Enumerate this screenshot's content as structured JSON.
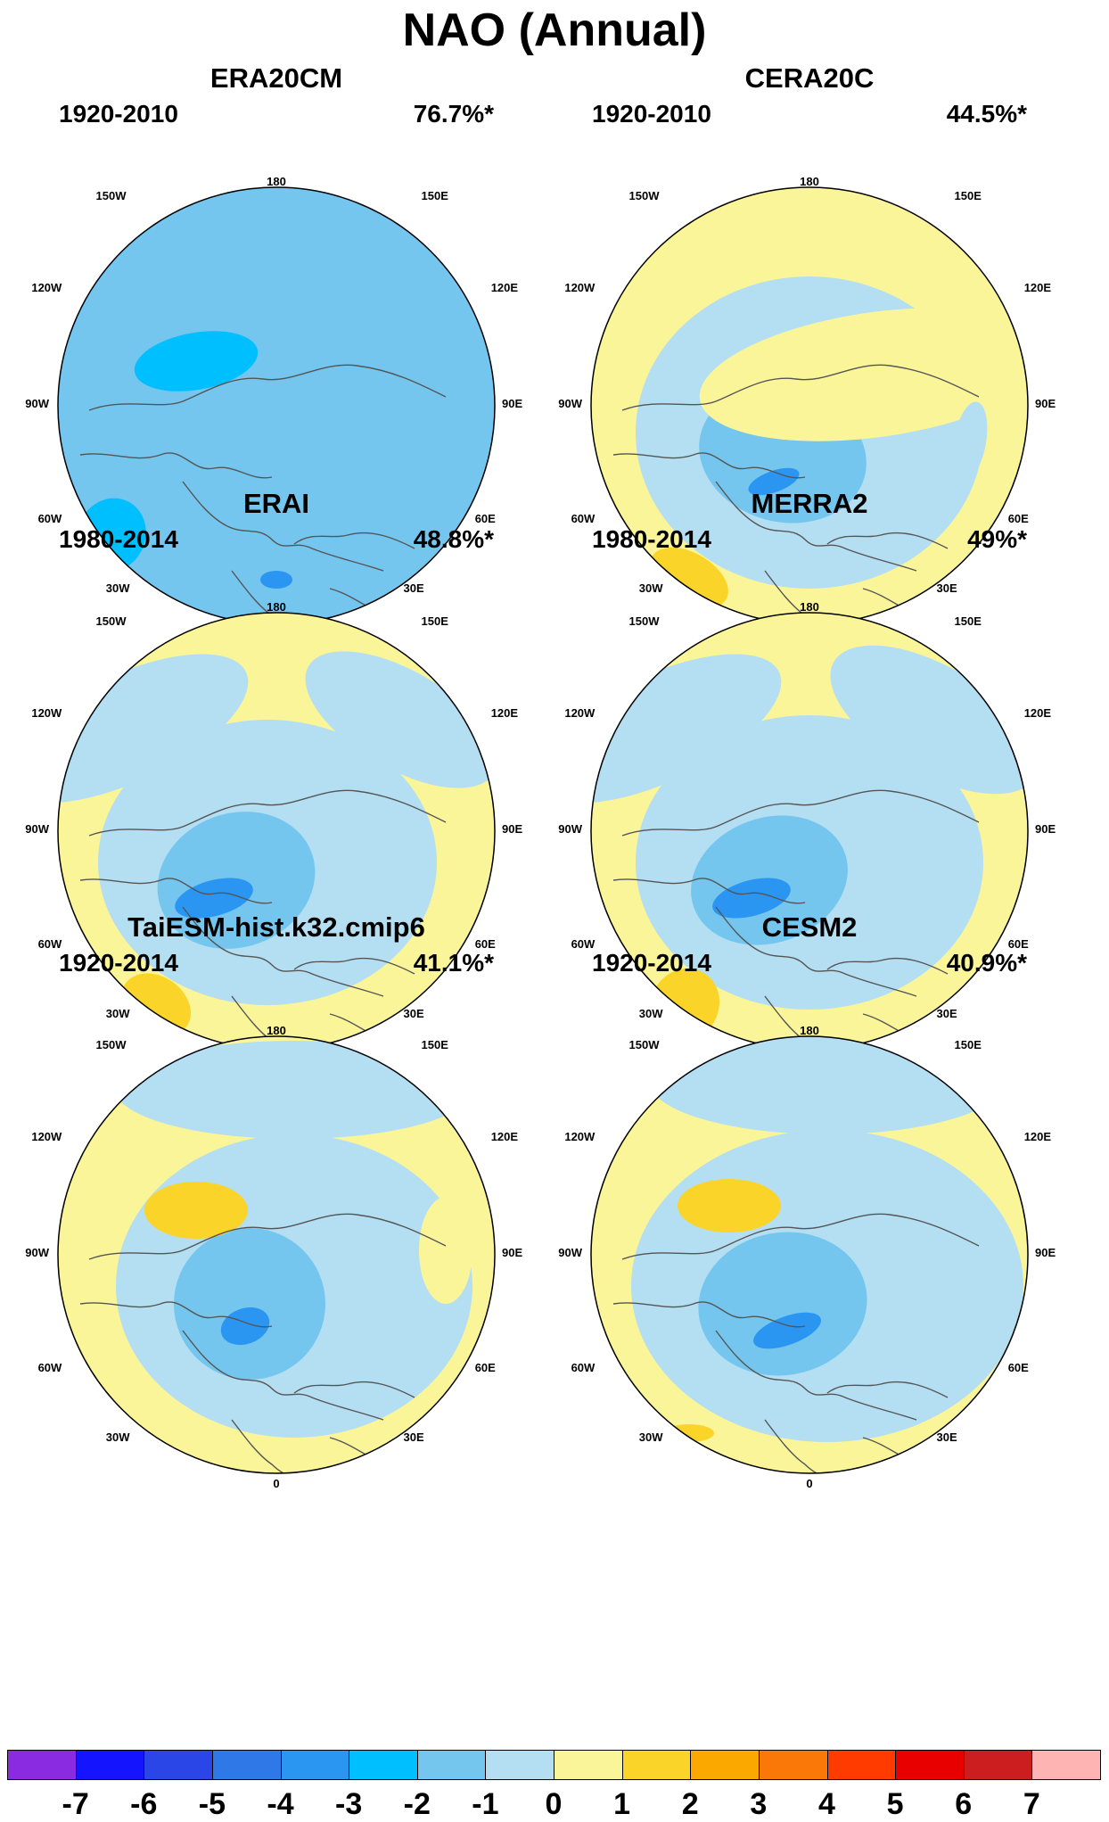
{
  "title": "NAO (Annual)",
  "longitude_labels": [
    "180",
    "150E",
    "120E",
    "90E",
    "60E",
    "30E",
    "0",
    "30W",
    "60W",
    "90W",
    "120W",
    "150W"
  ],
  "panels": [
    {
      "title": "ERA20CM",
      "period": "1920-2010",
      "variance": "76.7%*",
      "background": "#74C6EF"
    },
    {
      "title": "CERA20C",
      "period": "1920-2010",
      "variance": "44.5%*",
      "background": "#FBF599"
    },
    {
      "title": "ERAI",
      "period": "1980-2014",
      "variance": "48.8%*",
      "background": "#FBF599"
    },
    {
      "title": "MERRA2",
      "period": "1980-2014",
      "variance": "49%*",
      "background": "#FBF599"
    },
    {
      "title": "TaiESM-hist.k32.cmip6",
      "period": "1920-2014",
      "variance": "41.1%*",
      "background": "#FBF599"
    },
    {
      "title": "CESM2",
      "period": "1920-2014",
      "variance": "40.9%*",
      "background": "#FBF599"
    }
  ],
  "colorbar": {
    "labels": [
      "-7",
      "-6",
      "-5",
      "-4",
      "-3",
      "-2",
      "-1",
      "0",
      "1",
      "2",
      "3",
      "4",
      "5",
      "6",
      "7"
    ],
    "colors": [
      "#8A2BE2",
      "#1414FF",
      "#2A46E6",
      "#2F78E8",
      "#2B96F2",
      "#00BFFF",
      "#74C6EF",
      "#B4DEF2",
      "#FBF599",
      "#FBD42A",
      "#FBA800",
      "#F97808",
      "#FF3B00",
      "#E80000",
      "#CC1E1E",
      "#FFB4B4"
    ]
  }
}
